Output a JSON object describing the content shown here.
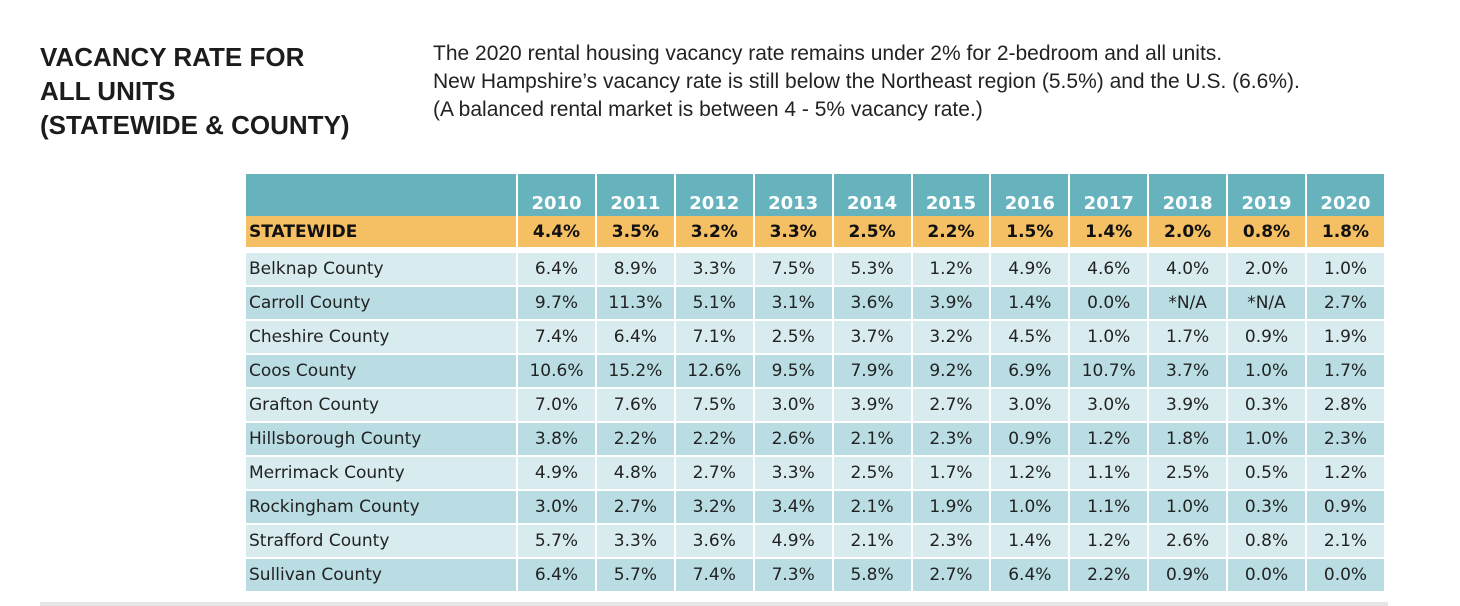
{
  "title_lines": [
    "VACANCY RATE FOR",
    "ALL UNITS",
    "(STATEWIDE & COUNTY)"
  ],
  "description_lines": [
    "The 2020 rental housing vacancy rate remains under 2% for 2-bedroom and all units.",
    "New Hampshire’s vacancy rate is still below the Northeast region (5.5%) and the U.S. (6.6%).",
    "(A balanced rental market is between 4 - 5% vacancy rate.)"
  ],
  "table": {
    "years": [
      "2010",
      "2011",
      "2012",
      "2013",
      "2014",
      "2015",
      "2016",
      "2017",
      "2018",
      "2019",
      "2020"
    ],
    "statewide": {
      "label": "STATEWIDE",
      "values": [
        "4.4%",
        "3.5%",
        "3.2%",
        "3.3%",
        "2.5%",
        "2.2%",
        "1.5%",
        "1.4%",
        "2.0%",
        "0.8%",
        "1.8%"
      ]
    },
    "counties": [
      {
        "name": "Belknap County",
        "values": [
          "6.4%",
          "8.9%",
          "3.3%",
          "7.5%",
          "5.3%",
          "1.2%",
          "4.9%",
          "4.6%",
          "4.0%",
          "2.0%",
          "1.0%"
        ]
      },
      {
        "name": "Carroll County",
        "values": [
          "9.7%",
          "11.3%",
          "5.1%",
          "3.1%",
          "3.6%",
          "3.9%",
          "1.4%",
          "0.0%",
          "*N/A",
          "*N/A",
          "2.7%"
        ]
      },
      {
        "name": "Cheshire County",
        "values": [
          "7.4%",
          "6.4%",
          "7.1%",
          "2.5%",
          "3.7%",
          "3.2%",
          "4.5%",
          "1.0%",
          "1.7%",
          "0.9%",
          "1.9%"
        ]
      },
      {
        "name": "Coos County",
        "values": [
          "10.6%",
          "15.2%",
          "12.6%",
          "9.5%",
          "7.9%",
          "9.2%",
          "6.9%",
          "10.7%",
          "3.7%",
          "1.0%",
          "1.7%"
        ]
      },
      {
        "name": "Grafton County",
        "values": [
          "7.0%",
          "7.6%",
          "7.5%",
          "3.0%",
          "3.9%",
          "2.7%",
          "3.0%",
          "3.0%",
          "3.9%",
          "0.3%",
          "2.8%"
        ]
      },
      {
        "name": "Hillsborough County",
        "values": [
          "3.8%",
          "2.2%",
          "2.2%",
          "2.6%",
          "2.1%",
          "2.3%",
          "0.9%",
          "1.2%",
          "1.8%",
          "1.0%",
          "2.3%"
        ]
      },
      {
        "name": "Merrimack County",
        "values": [
          "4.9%",
          "4.8%",
          "2.7%",
          "3.3%",
          "2.5%",
          "1.7%",
          "1.2%",
          "1.1%",
          "2.5%",
          "0.5%",
          "1.2%"
        ]
      },
      {
        "name": "Rockingham County",
        "values": [
          "3.0%",
          "2.7%",
          "3.2%",
          "3.4%",
          "2.1%",
          "1.9%",
          "1.0%",
          "1.1%",
          "1.0%",
          "0.3%",
          "0.9%"
        ]
      },
      {
        "name": "Strafford County",
        "values": [
          "5.7%",
          "3.3%",
          "3.6%",
          "4.9%",
          "2.1%",
          "2.3%",
          "1.4%",
          "1.2%",
          "2.6%",
          "0.8%",
          "2.1%"
        ]
      },
      {
        "name": "Sullivan County",
        "values": [
          "6.4%",
          "5.7%",
          "7.4%",
          "7.3%",
          "5.8%",
          "2.7%",
          "6.4%",
          "2.2%",
          "0.9%",
          "0.0%",
          "0.0%"
        ]
      }
    ]
  },
  "colors": {
    "header": "#66b3bd",
    "statewide": "#f5bf63",
    "row_light": "#d8ecef",
    "row_dark": "#b9dde3"
  }
}
